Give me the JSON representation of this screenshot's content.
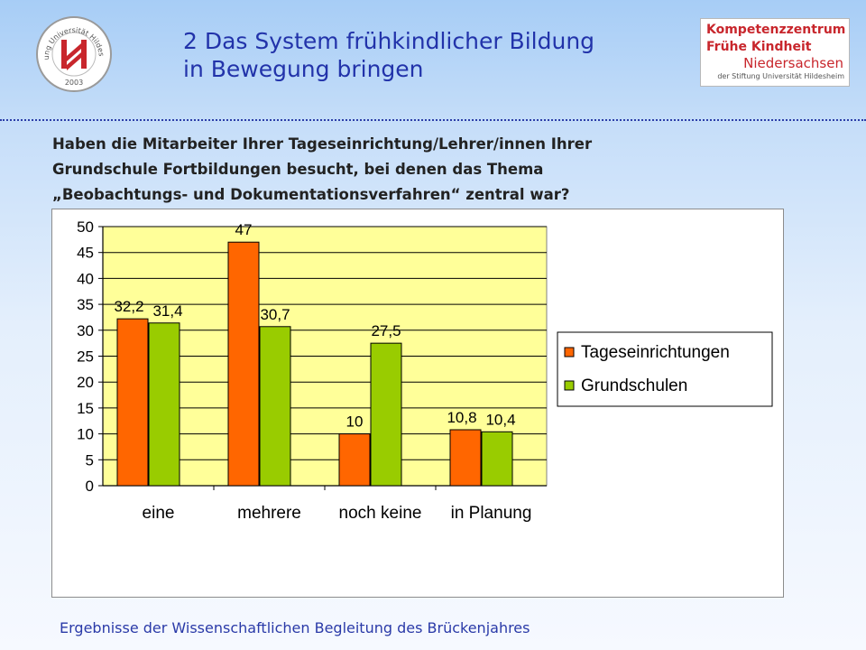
{
  "header": {
    "title_line1": "2 Das System frühkindlicher Bildung",
    "title_line2": "in Bewegung bringen",
    "seal_text": "Stiftung Universität Hildesheim",
    "seal_year": "2003",
    "logo": {
      "line1": "Kompetenzzentrum",
      "line2": "Frühe Kindheit",
      "line3": "Niedersachsen",
      "line4": "der Stiftung Universität Hildesheim"
    }
  },
  "question": {
    "line1": "Haben die Mitarbeiter Ihrer Tageseinrichtung/Lehrer/innen Ihrer",
    "line2": "Grundschule Fortbildungen besucht, bei denen das Thema",
    "line3": "„Beobachtungs- und Dokumentationsverfahren“ zentral war?"
  },
  "chart_data": {
    "type": "bar",
    "categories": [
      "eine",
      "mehrere",
      "noch keine",
      "in Planung"
    ],
    "series": [
      {
        "name": "Tageseinrichtungen",
        "values": [
          32.2,
          47,
          10,
          10.8
        ],
        "labels": [
          "32,2",
          "47",
          "10",
          "10,8"
        ],
        "color": "#ff6600"
      },
      {
        "name": "Grundschulen",
        "values": [
          31.4,
          30.7,
          27.5,
          10.4
        ],
        "labels": [
          "31,4",
          "30,7",
          "27,5",
          "10,4"
        ],
        "color": "#99cc00"
      }
    ],
    "ylim": [
      0,
      50
    ],
    "yticks": [
      0,
      5,
      10,
      15,
      20,
      25,
      30,
      35,
      40,
      45,
      50
    ],
    "grid": true,
    "plot_background": "#ffff99",
    "legend_position": "right",
    "title": "",
    "xlabel": "",
    "ylabel": ""
  },
  "footer": {
    "text": "Ergebnisse der Wissenschaftlichen Begleitung des Brückenjahres"
  }
}
